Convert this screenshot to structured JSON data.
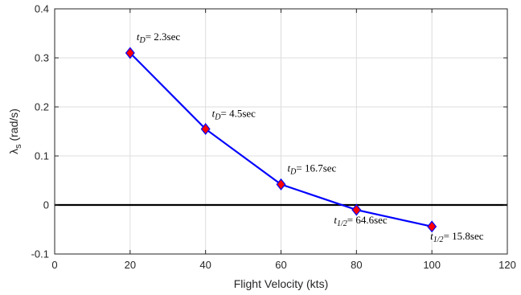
{
  "chart_data": {
    "type": "line",
    "xlabel": "Flight Velocity (kts)",
    "ylabel": {
      "symbol": "λ",
      "subscript": "s",
      "unit": " (rad/s)"
    },
    "xlim": [
      0,
      120
    ],
    "ylim": [
      -0.1,
      0.4
    ],
    "xticks": [
      "0",
      "20",
      "40",
      "60",
      "80",
      "100",
      "120"
    ],
    "yticks": [
      "-0.1",
      "0",
      "0.1",
      "0.2",
      "0.3",
      "0.4"
    ],
    "grid": true,
    "zero_line": true,
    "series": [
      {
        "x": [
          20,
          40,
          60,
          80,
          100
        ],
        "y": [
          0.31,
          0.155,
          0.042,
          -0.01,
          -0.044
        ]
      }
    ],
    "annotations": [
      {
        "var": "t",
        "sub": "D",
        "text": "= 2.3sec"
      },
      {
        "var": "t",
        "sub": "D",
        "text": "= 4.5sec"
      },
      {
        "var": "t",
        "sub": "D",
        "text": "= 16.7sec"
      },
      {
        "var": "t",
        "sub": "1/2",
        "text": "= 64.6sec"
      },
      {
        "var": "t",
        "sub": "1/2",
        "text": "= 15.8sec"
      }
    ],
    "colors": {
      "line": "#0000ff",
      "marker_fill": "#ff0000",
      "marker_edge": "#0000ff",
      "grid": "#dcdcdc",
      "zero_line": "#000000"
    }
  }
}
